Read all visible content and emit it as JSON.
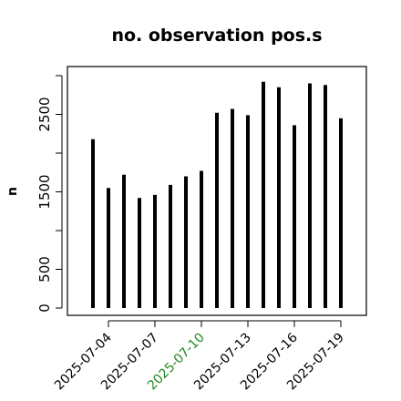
{
  "chart_data": {
    "type": "bar",
    "style": "histogram-like vertical lines",
    "title": "no. observation pos.s",
    "xlabel": "",
    "ylabel": "n",
    "x": [
      "2025-07-03",
      "2025-07-04",
      "2025-07-05",
      "2025-07-06",
      "2025-07-07",
      "2025-07-08",
      "2025-07-09",
      "2025-07-10",
      "2025-07-11",
      "2025-07-12",
      "2025-07-13",
      "2025-07-14",
      "2025-07-15",
      "2025-07-16",
      "2025-07-17",
      "2025-07-18",
      "2025-07-19"
    ],
    "values": [
      2180,
      1550,
      1720,
      1420,
      1460,
      1590,
      1700,
      1770,
      2520,
      2570,
      2490,
      2920,
      2850,
      2360,
      2900,
      2880,
      2450
    ],
    "ylim": [
      0,
      3100
    ],
    "yticks": [
      0,
      500,
      1500,
      2500
    ],
    "xticks": [
      "2025-07-04",
      "2025-07-07",
      "2025-07-10",
      "2025-07-13",
      "2025-07-16",
      "2025-07-19"
    ],
    "highlight_tick": "2025-07-10",
    "colors": {
      "bars": "#000000",
      "axis": "#000000",
      "highlight_tick": "#228B22"
    },
    "grid": false
  }
}
